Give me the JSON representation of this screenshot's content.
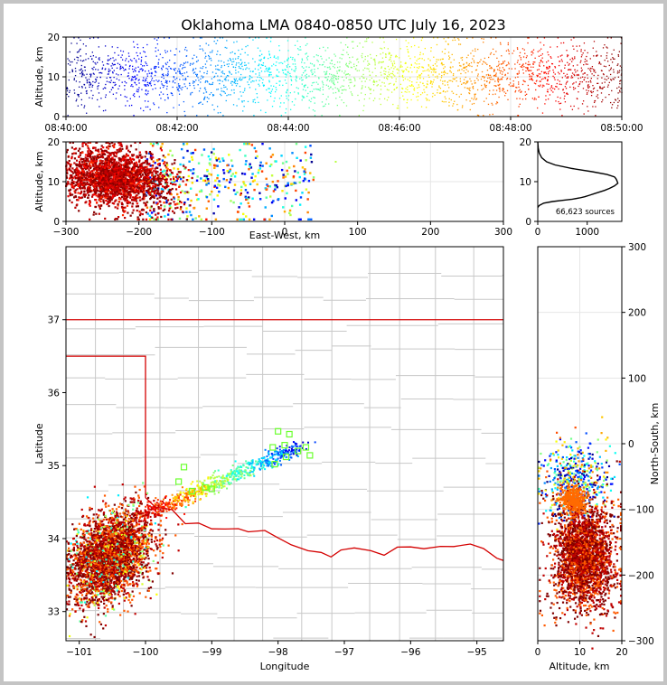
{
  "title": "Oklahoma LMA 0840-0850 UTC July 16, 2023",
  "colors": {
    "frame": "#c4c4c4",
    "state_border": "#cc0000",
    "county": "#c8c8c8",
    "grid": "#e8e8e8"
  },
  "chart_data": [
    {
      "type": "scatter",
      "panel": "altitude-time",
      "xlabel": "",
      "ylabel": "Altitude, km",
      "xticks": [
        "08:40:00",
        "08:42:00",
        "08:44:00",
        "08:46:00",
        "08:48:00",
        "08:50:00"
      ],
      "xlim_minutes": [
        0,
        10
      ],
      "ylim": [
        0,
        20
      ],
      "yticks": [
        0,
        10,
        20
      ],
      "colormap": "jet (by time)",
      "grid": true
    },
    {
      "type": "scatter",
      "panel": "altitude-east-west",
      "xlabel": "East-West, km",
      "ylabel": "Altitude, km",
      "xlim": [
        -300,
        300
      ],
      "xticks": [
        -300,
        -200,
        -100,
        0,
        100,
        200,
        300
      ],
      "ylim": [
        0,
        20
      ],
      "yticks": [
        0,
        10,
        20
      ],
      "grid": true
    },
    {
      "type": "line",
      "panel": "altitude-histogram",
      "annotation": "66,623 sources",
      "xlim": [
        0,
        1700
      ],
      "xticks": [
        0,
        1000
      ],
      "ylim": [
        0,
        20
      ],
      "yticks": [
        0,
        10,
        20
      ],
      "x": [
        0,
        30,
        120,
        300,
        500,
        700,
        850,
        950,
        1050,
        1150,
        1250,
        1350,
        1450,
        1550,
        1620,
        1600,
        1580,
        1550,
        1400,
        1100,
        700,
        350,
        180,
        80,
        30,
        10,
        0
      ],
      "y": [
        3.5,
        4.0,
        4.6,
        5.0,
        5.3,
        5.6,
        5.9,
        6.2,
        6.6,
        7.0,
        7.4,
        7.8,
        8.3,
        8.9,
        9.6,
        10.3,
        10.8,
        11.2,
        11.8,
        12.5,
        13.3,
        14.2,
        15.0,
        16.0,
        17.2,
        18.5,
        20.0
      ]
    },
    {
      "type": "scatter",
      "panel": "plan-view",
      "xlabel": "Longitude",
      "ylabel": "Latitude",
      "xlim": [
        -101.2,
        -94.6
      ],
      "xticks": [
        -101,
        -100,
        -99,
        -98,
        -97,
        -96,
        -95
      ],
      "ylim": [
        32.6,
        38.0
      ],
      "yticks": [
        33,
        34,
        35,
        36,
        37
      ],
      "stations": [
        [
          -98.0,
          35.47
        ],
        [
          -97.83,
          35.43
        ],
        [
          -98.08,
          35.25
        ],
        [
          -97.9,
          35.28
        ],
        [
          -97.58,
          35.25
        ],
        [
          -97.7,
          35.2
        ],
        [
          -97.88,
          35.12
        ],
        [
          -98.05,
          35.02
        ],
        [
          -99.42,
          34.98
        ],
        [
          -99.5,
          34.78
        ],
        [
          -99.0,
          34.68
        ],
        [
          -99.3,
          34.65
        ],
        [
          -99.1,
          34.7
        ],
        [
          -97.52,
          35.14
        ]
      ]
    },
    {
      "type": "scatter",
      "panel": "north-south-altitude",
      "xlabel": "Altitude, km",
      "ylabel": "North-South, km",
      "xlim": [
        0,
        20
      ],
      "xticks": [
        0,
        10,
        20
      ],
      "ylim": [
        -300,
        300
      ],
      "yticks": [
        -300,
        -200,
        -100,
        0,
        100,
        200,
        300
      ],
      "grid": true
    }
  ]
}
